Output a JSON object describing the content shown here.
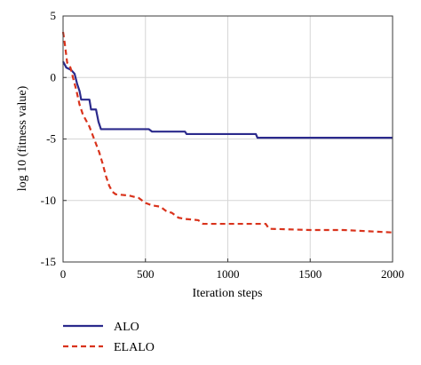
{
  "chart_data": {
    "type": "line",
    "xlabel": "Iteration steps",
    "ylabel": "log 10 (fitness value)",
    "xlim": [
      0,
      2000
    ],
    "ylim": [
      -15,
      5
    ],
    "xticks": [
      0,
      500,
      1000,
      1500,
      2000
    ],
    "yticks": [
      5,
      0,
      -5,
      -10,
      -15
    ],
    "xtick_labels": [
      "0",
      "500",
      "1000",
      "1500",
      "2000"
    ],
    "ytick_labels": [
      "5",
      "0",
      "-5",
      "-10",
      "-15"
    ],
    "grid": true,
    "legend_position": "bottom-left, below the plot",
    "series": [
      {
        "name": "ALO",
        "color": "#2b2a8c",
        "style": "solid",
        "points": [
          [
            0,
            1.3
          ],
          [
            20,
            0.8
          ],
          [
            50,
            0.6
          ],
          [
            70,
            0.3
          ],
          [
            85,
            -0.5
          ],
          [
            100,
            -1.1
          ],
          [
            110,
            -1.8
          ],
          [
            160,
            -1.8
          ],
          [
            170,
            -2.6
          ],
          [
            200,
            -2.6
          ],
          [
            215,
            -3.6
          ],
          [
            230,
            -4.2
          ],
          [
            520,
            -4.2
          ],
          [
            540,
            -4.4
          ],
          [
            740,
            -4.4
          ],
          [
            750,
            -4.6
          ],
          [
            1170,
            -4.6
          ],
          [
            1180,
            -4.9
          ],
          [
            2000,
            -4.9
          ]
        ]
      },
      {
        "name": "ELALO",
        "color": "#d9331c",
        "style": "dashed",
        "points": [
          [
            0,
            3.7
          ],
          [
            10,
            2.8
          ],
          [
            25,
            1.2
          ],
          [
            45,
            0.8
          ],
          [
            60,
            0.0
          ],
          [
            80,
            -1.0
          ],
          [
            100,
            -2.2
          ],
          [
            120,
            -3.0
          ],
          [
            140,
            -3.5
          ],
          [
            160,
            -4.0
          ],
          [
            180,
            -4.7
          ],
          [
            200,
            -5.4
          ],
          [
            220,
            -6.1
          ],
          [
            240,
            -7.0
          ],
          [
            260,
            -8.0
          ],
          [
            280,
            -8.8
          ],
          [
            300,
            -9.3
          ],
          [
            320,
            -9.5
          ],
          [
            400,
            -9.6
          ],
          [
            460,
            -9.8
          ],
          [
            500,
            -10.2
          ],
          [
            540,
            -10.4
          ],
          [
            590,
            -10.5
          ],
          [
            630,
            -10.9
          ],
          [
            660,
            -11.0
          ],
          [
            700,
            -11.4
          ],
          [
            740,
            -11.5
          ],
          [
            820,
            -11.6
          ],
          [
            850,
            -11.9
          ],
          [
            1230,
            -11.9
          ],
          [
            1250,
            -12.3
          ],
          [
            1500,
            -12.4
          ],
          [
            1700,
            -12.4
          ],
          [
            2000,
            -12.6
          ]
        ]
      }
    ]
  }
}
